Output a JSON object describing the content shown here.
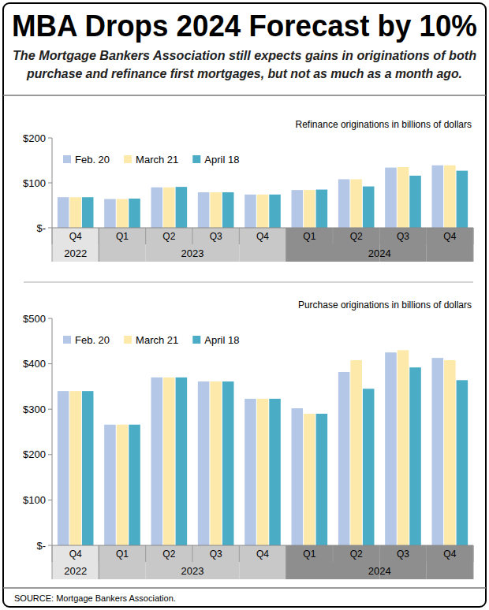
{
  "header": {
    "title": "MBA Drops 2024 Forecast by 10%",
    "subtitle": [
      "The Mortgage Bankers Association still expects gains in originations of both",
      "purchase and refinance first mortgages, but not as much as a month ago."
    ]
  },
  "footer": {
    "source": "SOURCE: Mortgage Bankers Association."
  },
  "chart_data": [
    {
      "type": "bar",
      "title": "Refinance originations in billions of dollars",
      "categories": [
        "Q4",
        "Q1",
        "Q2",
        "Q3",
        "Q4",
        "Q1",
        "Q2",
        "Q3",
        "Q4"
      ],
      "category_groups": [
        {
          "label": "2022",
          "count": 1
        },
        {
          "label": "2023",
          "count": 4
        },
        {
          "label": "2024",
          "count": 4
        }
      ],
      "series": [
        {
          "name": "Feb. 20",
          "color": "#b4c7e7",
          "values": [
            68,
            64,
            90,
            79,
            74,
            84,
            108,
            134,
            139
          ]
        },
        {
          "name": "March 21",
          "color": "#fde9a9",
          "values": [
            68,
            64,
            90,
            79,
            74,
            84,
            108,
            135,
            139
          ]
        },
        {
          "name": "April 18",
          "color": "#4bacc6",
          "values": [
            68,
            65,
            91,
            79,
            74,
            85,
            92,
            116,
            127
          ]
        }
      ],
      "ylim": [
        0,
        200
      ],
      "yticks": [
        {
          "value": 0,
          "label": "$-"
        },
        {
          "value": 100,
          "label": "$100"
        },
        {
          "value": 200,
          "label": "$200"
        }
      ],
      "grid": false,
      "legend": "top-left"
    },
    {
      "type": "bar",
      "title": "Purchase originations in billions of dollars",
      "categories": [
        "Q4",
        "Q1",
        "Q2",
        "Q3",
        "Q4",
        "Q1",
        "Q2",
        "Q3",
        "Q4"
      ],
      "category_groups": [
        {
          "label": "2022",
          "count": 1
        },
        {
          "label": "2023",
          "count": 4
        },
        {
          "label": "2024",
          "count": 4
        }
      ],
      "series": [
        {
          "name": "Feb. 20",
          "color": "#b4c7e7",
          "values": [
            340,
            266,
            370,
            361,
            323,
            302,
            382,
            425,
            413
          ]
        },
        {
          "name": "March 21",
          "color": "#fde9a9",
          "values": [
            340,
            266,
            370,
            361,
            323,
            290,
            408,
            430,
            408
          ]
        },
        {
          "name": "April 18",
          "color": "#4bacc6",
          "values": [
            340,
            266,
            370,
            361,
            323,
            290,
            345,
            392,
            364
          ]
        }
      ],
      "ylim": [
        0,
        500
      ],
      "yticks": [
        {
          "value": 0,
          "label": "$-"
        },
        {
          "value": 100,
          "label": "$100"
        },
        {
          "value": 200,
          "label": "$200"
        },
        {
          "value": 300,
          "label": "$300"
        },
        {
          "value": 400,
          "label": "$400"
        },
        {
          "value": 500,
          "label": "$500"
        }
      ],
      "grid": false,
      "legend": "top-left"
    }
  ]
}
